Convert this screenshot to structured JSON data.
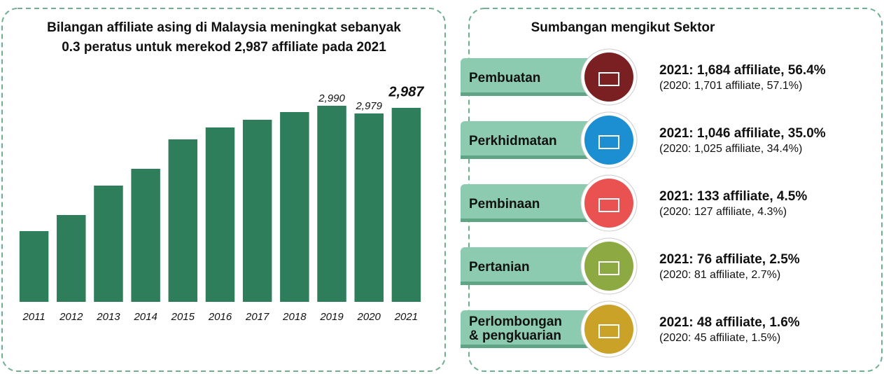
{
  "chart_data": {
    "type": "bar",
    "title": [
      "Bilangan affiliate asing di Malaysia meningkat sebanyak",
      "0.3 peratus untuk merekod 2,987 affiliate pada 2021"
    ],
    "categories": [
      "2011",
      "2012",
      "2013",
      "2014",
      "2015",
      "2016",
      "2017",
      "2018",
      "2019",
      "2020",
      "2021"
    ],
    "values": [
      2811,
      2834,
      2876,
      2900,
      2942,
      2959,
      2970,
      2981,
      2990,
      2979,
      2987
    ],
    "value_labels": [
      null,
      null,
      null,
      null,
      null,
      null,
      null,
      null,
      "2,990",
      "2,979",
      "2,987"
    ],
    "color": "#2e7d5b",
    "ylim": [
      2710,
      3000
    ]
  },
  "sectors": {
    "title": "Sumbangan mengikut Sektor",
    "items": [
      {
        "name": "Pembuatan",
        "color": "#7a1f22",
        "line1": "2021: 1,684 affiliate, 56.4%",
        "line2": "(2020: 1,701 affiliate, 57.1%)"
      },
      {
        "name": "Perkhidmatan",
        "color": "#1b8fd2",
        "line1": "2021: 1,046 affiliate, 35.0%",
        "line2": "(2020: 1,025 affiliate, 34.4%)"
      },
      {
        "name": "Pembinaan",
        "color": "#ea5252",
        "line1": "2021: 133 affiliate, 4.5%",
        "line2": "(2020: 127 affiliate, 4.3%)"
      },
      {
        "name": "Pertanian",
        "color": "#8daa42",
        "line1": "2021: 76 affiliate, 2.5%",
        "line2": "(2020: 81 affiliate, 2.7%)"
      },
      {
        "name": [
          "Perlombongan",
          "& pengkuarian"
        ],
        "color": "#c9a227",
        "line1": "2021: 48 affiliate, 1.6%",
        "line2": "(2020: 45 affiliate, 1.5%)"
      }
    ]
  }
}
